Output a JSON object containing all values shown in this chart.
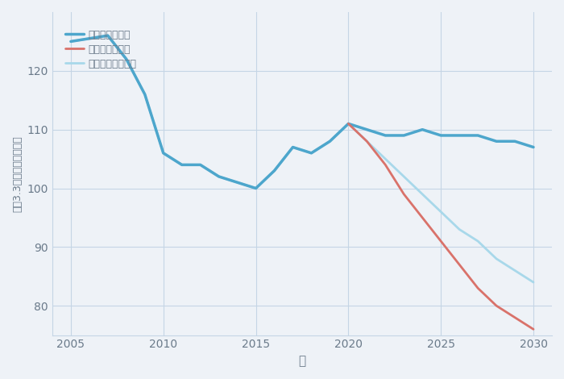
{
  "xlabel": "年",
  "ylabel": "平（3.3㎡）単価（万円）",
  "background_color": "#eef2f7",
  "plot_background": "#eef2f7",
  "ylim": [
    75,
    130
  ],
  "xlim": [
    2004,
    2031
  ],
  "yticks": [
    80,
    90,
    100,
    110,
    120
  ],
  "xticks": [
    2005,
    2010,
    2015,
    2020,
    2025,
    2030
  ],
  "good_scenario": {
    "label": "グッドシナリオ",
    "color": "#4da6cc",
    "linewidth": 2.5,
    "x": [
      2005,
      2007,
      2008,
      2009,
      2010,
      2011,
      2012,
      2013,
      2014,
      2015,
      2016,
      2017,
      2018,
      2019,
      2020,
      2021,
      2022,
      2023,
      2024,
      2025,
      2026,
      2027,
      2028,
      2029,
      2030
    ],
    "y": [
      125,
      126,
      122,
      116,
      106,
      104,
      104,
      102,
      101,
      100,
      103,
      107,
      106,
      108,
      111,
      110,
      109,
      109,
      110,
      109,
      109,
      109,
      108,
      108,
      107
    ]
  },
  "bad_scenario": {
    "label": "バッドシナリオ",
    "color": "#d9726a",
    "linewidth": 2.0,
    "x": [
      2020,
      2021,
      2022,
      2023,
      2024,
      2025,
      2026,
      2027,
      2028,
      2029,
      2030
    ],
    "y": [
      111,
      108,
      104,
      99,
      95,
      91,
      87,
      83,
      80,
      78,
      76
    ]
  },
  "normal_scenario": {
    "label": "ノーマルシナリオ",
    "color": "#a8d8ea",
    "linewidth": 2.0,
    "x": [
      2005,
      2007,
      2008,
      2009,
      2010,
      2011,
      2012,
      2013,
      2014,
      2015,
      2016,
      2017,
      2018,
      2019,
      2020,
      2021,
      2022,
      2023,
      2024,
      2025,
      2026,
      2027,
      2028,
      2029,
      2030
    ],
    "y": [
      125,
      126,
      122,
      116,
      106,
      104,
      104,
      102,
      101,
      100,
      103,
      107,
      106,
      108,
      111,
      108,
      105,
      102,
      99,
      96,
      93,
      91,
      88,
      86,
      84
    ]
  },
  "title_color": "#6a7a8a",
  "tick_color": "#6a7a8a",
  "grid_color": "#c5d5e5",
  "legend_text_color": "#6a7a8a",
  "title_fontsize": 20,
  "tick_fontsize": 10
}
